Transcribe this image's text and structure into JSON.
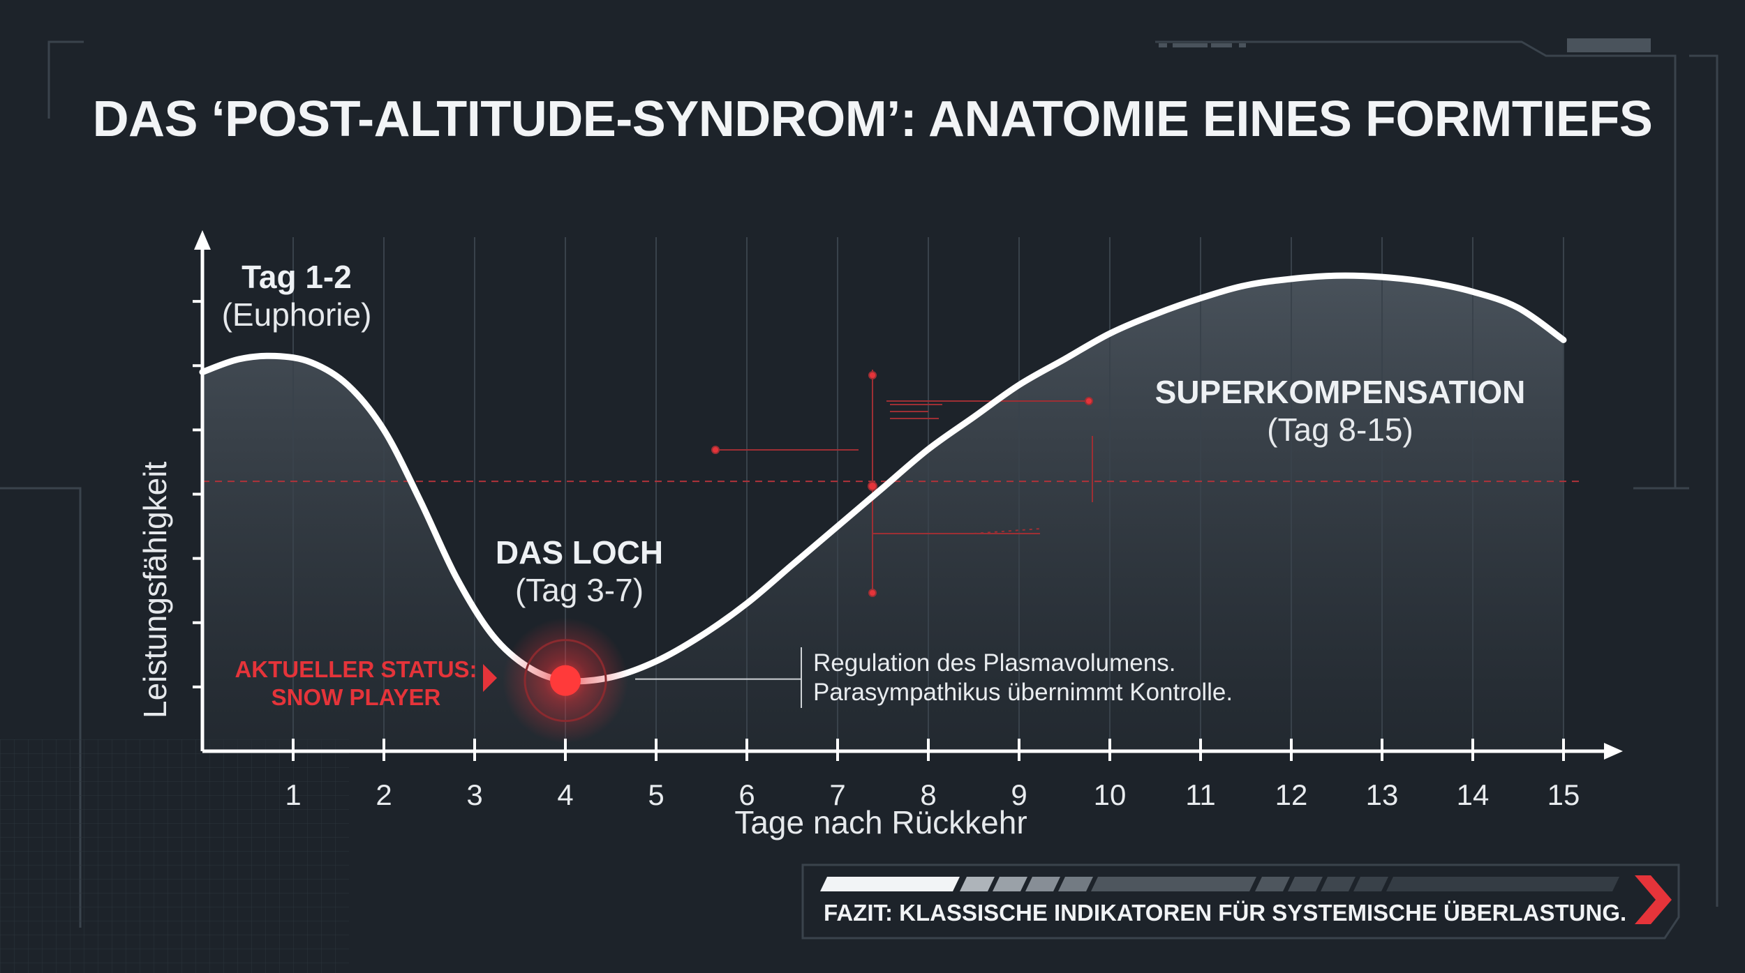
{
  "title": "DAS ‘POST-ALTITUDE-SYNDROM’: ANATOMIE EINES FORMTIEFS",
  "annotations": {
    "euphorie": {
      "title": "Tag 1-2",
      "sub": "(Euphorie)"
    },
    "loch": {
      "title": "DAS LOCH",
      "sub": "(Tag 3-7)"
    },
    "superkomp": {
      "title": "SUPERKOMPENSATION",
      "sub": "(Tag 8-15)"
    }
  },
  "status": {
    "line1": "AKTUELLER STATUS:",
    "line2": "SNOW PLAYER"
  },
  "note": {
    "line1": "Regulation des Plasmavolumens.",
    "line2": "Parasympathikus übernimmt Kontrolle."
  },
  "fazit": "FAZIT: KLASSISCHE INDIKATOREN FÜR SYSTEMISCHE ÜBERLASTUNG.",
  "colors": {
    "background": "#1d232a",
    "curve": "#ffffff",
    "accent": "#e5343a",
    "grid": "#3a434c",
    "text": "#eef1f4"
  },
  "chart_data": {
    "type": "area",
    "xlabel": "Tage nach Rückkehr",
    "ylabel": "Leistungsfähigkeit",
    "xlim": [
      0,
      15
    ],
    "ylim": [
      0,
      8
    ],
    "x_ticks": [
      1,
      2,
      3,
      4,
      5,
      6,
      7,
      8,
      9,
      10,
      11,
      12,
      13,
      14,
      15
    ],
    "grid": true,
    "reference_line_y": 4.2,
    "highlight_point": {
      "x": 4,
      "y": 1.1
    },
    "series": [
      {
        "x": [
          0,
          0.4,
          0.8,
          1.2,
          1.6,
          2.0,
          2.4,
          2.8,
          3.2,
          3.6,
          4.0,
          4.5,
          5.0,
          5.5,
          6.0,
          6.5,
          7.0,
          7.5,
          8.0,
          8.5,
          9.0,
          9.5,
          10.0,
          10.5,
          11.0,
          11.5,
          12.0,
          12.5,
          13.0,
          13.5,
          14.0,
          14.5,
          15.0
        ],
        "y": [
          5.9,
          6.1,
          6.15,
          6.05,
          5.7,
          5.0,
          3.9,
          2.7,
          1.8,
          1.3,
          1.1,
          1.15,
          1.4,
          1.8,
          2.3,
          2.9,
          3.5,
          4.1,
          4.7,
          5.2,
          5.7,
          6.1,
          6.5,
          6.8,
          7.05,
          7.25,
          7.35,
          7.4,
          7.38,
          7.3,
          7.15,
          6.9,
          6.4
        ]
      }
    ]
  }
}
